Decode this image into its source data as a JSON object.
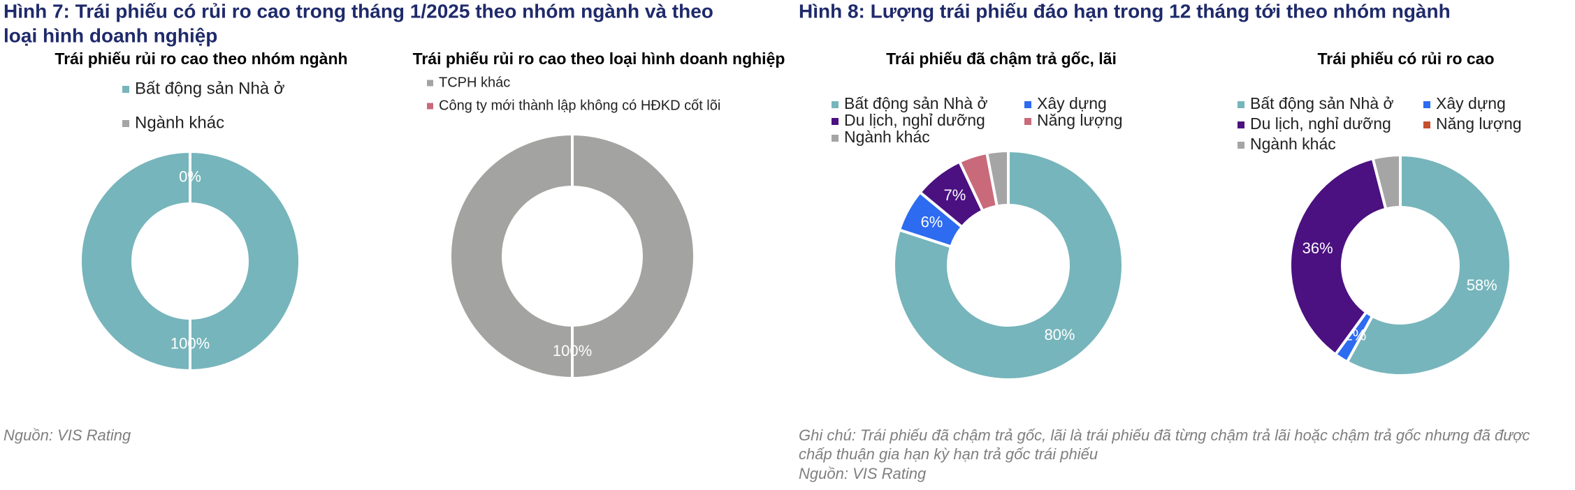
{
  "figure7_title_line1": "Hình 7: Trái phiếu có rủi ro cao trong tháng 1/2025 theo nhóm ngành và theo",
  "figure7_title_line2": "loại hình doanh nghiệp",
  "figure8_title": "Hình 8: Lượng trái phiếu đáo hạn trong 12 tháng tới theo nhóm ngành",
  "source_left": "Nguồn: VIS Rating",
  "note_right_line1": "Ghi chú: Trái phiếu đã chậm trả gốc, lãi là trái phiếu đã từng chậm trả lãi hoặc chậm trả gốc nhưng đã được",
  "note_right_line2": "chấp thuận gia hạn kỳ hạn trả gốc trái phiếu",
  "source_right": "Nguồn: VIS Rating",
  "chart_data": [
    {
      "type": "donut",
      "title": "Trái phiếu rủi ro cao theo nhóm ngành",
      "categories": [
        "Bất động sản Nhà ở",
        "Ngành khác"
      ],
      "values": [
        100,
        0
      ],
      "value_labels": [
        "100%",
        "0%"
      ],
      "colors": [
        "#76b5bb",
        "#a5a5a5"
      ]
    },
    {
      "type": "donut",
      "title": "Trái phiếu rủi ro cao theo loại hình doanh nghiệp",
      "categories": [
        "TCPH khác",
        "Công ty mới thành lập không có HĐKD cốt lõi"
      ],
      "values": [
        100,
        0
      ],
      "value_labels": [
        "100%",
        null
      ],
      "colors": [
        "#a3a3a1",
        "#c96a7a"
      ]
    },
    {
      "type": "donut",
      "title": "Trái phiếu đã chậm trả gốc, lãi",
      "categories": [
        "Bất động sản Nhà ở",
        "Xây dựng",
        "Du lịch, nghỉ dưỡng",
        "Năng lượng",
        "Ngành khác"
      ],
      "values": [
        80,
        6,
        7,
        4,
        3
      ],
      "value_labels": [
        "80%",
        "6%",
        "7%",
        null,
        null
      ],
      "colors": [
        "#76b5bb",
        "#2d6bf0",
        "#4b1180",
        "#c96a7a",
        "#a5a5a5"
      ]
    },
    {
      "type": "donut",
      "title": "Trái phiếu có rủi ro cao",
      "categories": [
        "Bất động sản Nhà ở",
        "Xây dựng",
        "Du lịch, nghỉ dưỡng",
        "Năng lượng",
        "Ngành khác"
      ],
      "values": [
        58,
        2,
        36,
        0,
        4
      ],
      "value_labels": [
        "58%",
        "2%",
        "36%",
        null,
        null
      ],
      "colors": [
        "#76b5bb",
        "#2d6bf0",
        "#4b1180",
        "#c4502e",
        "#a5a5a5"
      ]
    }
  ]
}
